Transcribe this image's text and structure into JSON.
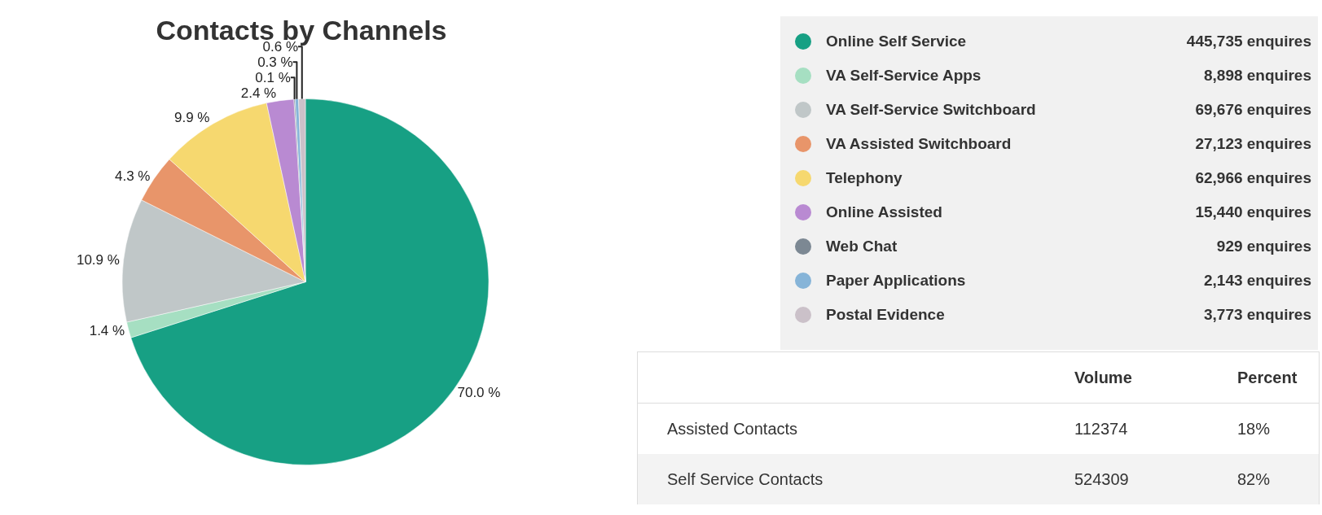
{
  "chart_data": [
    {
      "type": "pie",
      "title": "Contacts by Channels",
      "categories": [
        "Online Self Service",
        "VA Self-Service Apps",
        "VA Self-Service Switchboard",
        "VA Assisted Switchboard",
        "Telephony",
        "Online Assisted",
        "Web Chat",
        "Paper Applications",
        "Postal Evidence"
      ],
      "values": [
        70.0,
        1.4,
        10.9,
        4.3,
        9.9,
        2.4,
        0.1,
        0.3,
        0.6
      ],
      "colors": [
        "#17a084",
        "#a6dfc2",
        "#c0c7c8",
        "#e8956a",
        "#f6d86f",
        "#b98ad2",
        "#7c8893",
        "#86b4d8",
        "#cbc1c9"
      ],
      "value_labels": [
        "70.0 %",
        "1.4 %",
        "10.9 %",
        "4.3 %",
        "9.9 %",
        "2.4 %",
        "0.1 %",
        "0.3 %",
        "0.6 %"
      ],
      "annotations": [
        "445,735 enquires",
        "8,898 enquires",
        "69,676 enquires",
        "27,123 enquires",
        "62,966 enquires",
        "15,440 enquires",
        "929 enquires",
        "2,143 enquires",
        "3,773 enquires"
      ],
      "legend": "right"
    },
    {
      "type": "other",
      "categories": [
        "Assisted Contacts",
        "Self Service Contacts"
      ],
      "data_labels": true,
      "series": [
        {
          "name": "Volume",
          "values": [
            112374,
            524309
          ]
        },
        {
          "name": "Percent",
          "values": [
            18,
            82
          ],
          "value_labels": [
            "18%",
            "82%"
          ]
        }
      ]
    }
  ]
}
